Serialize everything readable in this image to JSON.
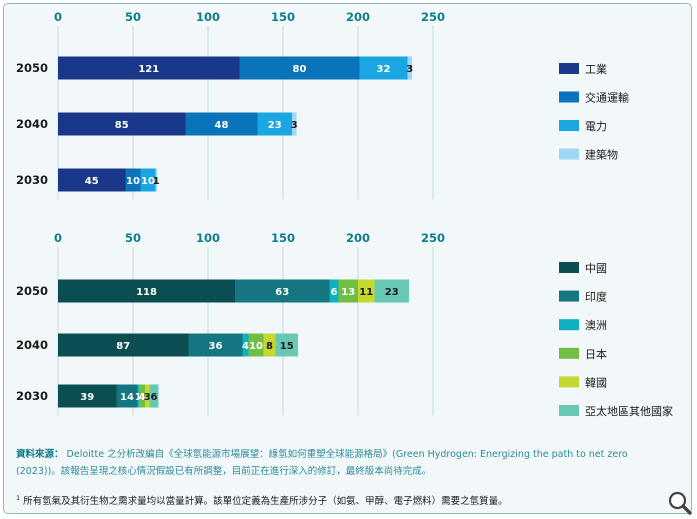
{
  "chart_data": [
    {
      "type": "bar",
      "orientation": "horizontal",
      "stacked": true,
      "categories": [
        "2050",
        "2040",
        "2030"
      ],
      "xlim": [
        0,
        250
      ],
      "xticks": [
        0,
        50,
        100,
        150,
        200,
        250
      ],
      "grid": true,
      "legend_position": "right",
      "series": [
        {
          "name": "工業",
          "values": [
            121,
            85,
            45
          ],
          "color": "#19388a"
        },
        {
          "name": "交通運輸",
          "values": [
            80,
            48,
            10
          ],
          "color": "#0b73b9"
        },
        {
          "name": "電力",
          "values": [
            32,
            23,
            10
          ],
          "color": "#1aa6e3"
        },
        {
          "name": "建築物",
          "values": [
            3,
            3,
            1
          ],
          "color": "#9fd8f4"
        }
      ]
    },
    {
      "type": "bar",
      "orientation": "horizontal",
      "stacked": true,
      "categories": [
        "2050",
        "2040",
        "2030"
      ],
      "xlim": [
        0,
        250
      ],
      "xticks": [
        0,
        50,
        100,
        150,
        200,
        250
      ],
      "grid": true,
      "legend_position": "right",
      "series": [
        {
          "name": "中國",
          "values": [
            118,
            87,
            39
          ],
          "color": "#0b4e52"
        },
        {
          "name": "印度",
          "values": [
            63,
            36,
            14
          ],
          "color": "#137680"
        },
        {
          "name": "澳洲",
          "values": [
            6,
            4,
            1
          ],
          "color": "#0eb1c1"
        },
        {
          "name": "日本",
          "values": [
            13,
            10,
            4
          ],
          "color": "#74bd44"
        },
        {
          "name": "韓國",
          "values": [
            11,
            8,
            3
          ],
          "color": "#c4d82e"
        },
        {
          "name": "亞太地區其他國家",
          "values": [
            23,
            15,
            6
          ],
          "color": "#67c8b4"
        }
      ]
    }
  ],
  "source": {
    "label": "資料來源：",
    "text": "Deloitte 之分析改編自《全球氫能源市場展望：綠氫如何重塑全球能源格局》(Green Hydrogen: Energizing the path to net zero (2023))。該報告呈現之核心情況假設已有所調整，目前正在進行深入的修訂，最終版本尚待完成。"
  },
  "footnote": {
    "marker": "1",
    "text": "所有氫氣及其衍生物之需求量均以當量計算。該單位定義為生產所涉分子（如氨、甲醇、電子燃料）需要之氫質量。"
  },
  "icons": {
    "zoom": "magnifier-icon"
  },
  "colors": {
    "frame_border": "#8fb8bd",
    "background": "#f2f8f9",
    "axis_text": "#0f7c8c"
  }
}
